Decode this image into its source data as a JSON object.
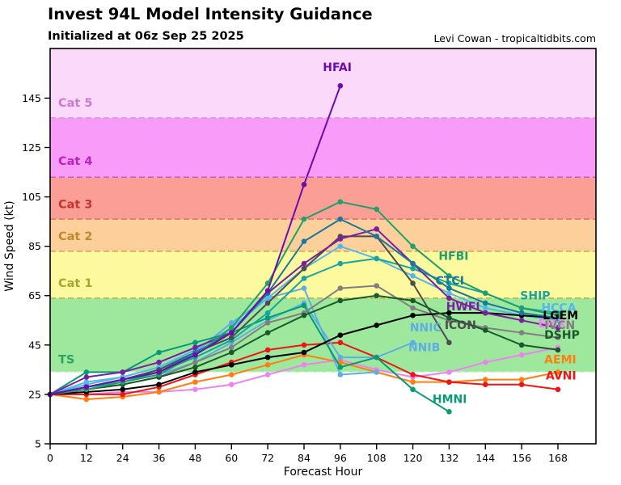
{
  "header": {
    "title": "Invest 94L Model Intensity Guidance",
    "subtitle": "Initialized at 06z Sep 25 2025",
    "credit": "Levi Cowan - tropicaltidbits.com"
  },
  "chart_data": {
    "type": "line",
    "title": "Invest 94L Model Intensity Guidance",
    "subtitle": "Initialized at 06z Sep 25 2025",
    "xlabel": "Forecast Hour",
    "ylabel": "Wind Speed (kt)",
    "xlim": [
      0,
      180.6
    ],
    "ylim": [
      5,
      165
    ],
    "x_ticks": [
      0,
      12,
      24,
      36,
      48,
      60,
      72,
      84,
      96,
      108,
      120,
      132,
      144,
      156,
      168
    ],
    "y_ticks": [
      5,
      25,
      45,
      65,
      85,
      105,
      125,
      145
    ],
    "x_step_hours": 12,
    "grid": false,
    "legend_position": "inline-labels",
    "bands": [
      {
        "name": "below-ts",
        "from": 5,
        "to": 34,
        "color": "#FFFFFF",
        "label": "",
        "label_color": "",
        "label_v": 0,
        "line_color": ""
      },
      {
        "name": "ts",
        "from": 34,
        "to": 64,
        "color": "#9EE89E",
        "label": "TS",
        "label_color": "#2FA360",
        "label_v": 37.5,
        "line_color": "#E2F5E2"
      },
      {
        "name": "cat1",
        "from": 64,
        "to": 83,
        "color": "#FDF99E",
        "label": "Cat 1",
        "label_color": "#A6A632",
        "label_v": 68.5,
        "line_color": "#B6B658"
      },
      {
        "name": "cat2",
        "from": 83,
        "to": 96,
        "color": "#FDD09B",
        "label": "Cat 2",
        "label_color": "#C1882B",
        "label_v": 87.5,
        "line_color": "#D3A74F"
      },
      {
        "name": "cat3",
        "from": 96,
        "to": 113,
        "color": "#FB9E96",
        "label": "Cat 3",
        "label_color": "#C5352C",
        "label_v": 100.5,
        "line_color": "#E0736A"
      },
      {
        "name": "cat4",
        "from": 113,
        "to": 137,
        "color": "#F99BF9",
        "label": "Cat 4",
        "label_color": "#BB22BB",
        "label_v": 118,
        "line_color": "#C95FC9"
      },
      {
        "name": "cat5",
        "from": 137,
        "to": 165,
        "color": "#FBD9FB",
        "label": "Cat 5",
        "label_color": "#C77DC7",
        "label_v": 141.5,
        "line_color": "#D79AD7"
      }
    ],
    "series": [
      {
        "name": "EMXI",
        "color": "#EE82EE",
        "values": [
          25,
          25,
          26,
          26,
          27,
          29,
          33,
          37,
          39,
          35,
          32,
          34,
          38,
          41,
          44
        ],
        "label": {
          "h": 161.5,
          "v": 52.2,
          "anchor": "start"
        }
      },
      {
        "name": "AEMI",
        "color": "#FF7F0E",
        "values": [
          25,
          23,
          24,
          26,
          30,
          33,
          37,
          41,
          38,
          34,
          30,
          30,
          31,
          31,
          34
        ],
        "label": {
          "h": 163.5,
          "v": 37.5,
          "anchor": "start"
        }
      },
      {
        "name": "AVNI",
        "color": "#F01515",
        "values": [
          25,
          25,
          25,
          28,
          33,
          38,
          43,
          45,
          46,
          40,
          33,
          30,
          29,
          29,
          27
        ],
        "label": {
          "h": 164,
          "v": 31,
          "anchor": "start"
        }
      },
      {
        "name": "NNIB",
        "color": "#5FAEE3",
        "values": [
          25,
          29,
          32,
          36,
          42,
          54,
          64,
          68,
          33,
          34
        ],
        "label": {
          "h": 118.5,
          "v": 42.5,
          "anchor": "start"
        }
      },
      {
        "name": "NNIC",
        "color": "#5FAEE3",
        "values": [
          25,
          28,
          30,
          33,
          38,
          46,
          55,
          62,
          40,
          40,
          46
        ],
        "label": {
          "h": 119,
          "v": 50.5,
          "anchor": "start"
        }
      },
      {
        "name": "HCCA",
        "color": "#53B8EC",
        "values": [
          25,
          30,
          32,
          36,
          43,
          52,
          64,
          76,
          85,
          80,
          73,
          66,
          60,
          57,
          55
        ],
        "label": {
          "h": 162.5,
          "v": 58.5,
          "anchor": "start"
        }
      },
      {
        "name": "HMNI",
        "color": "#089B76",
        "values": [
          25,
          34,
          34,
          42,
          46,
          50,
          56,
          61,
          36,
          40,
          27,
          18
        ],
        "label": {
          "h": 126.5,
          "v": 21.5,
          "anchor": "start"
        }
      },
      {
        "name": "SHIP",
        "color": "#16A5A0",
        "values": [
          25,
          28,
          30,
          34,
          40,
          47,
          58,
          72,
          78,
          80,
          76,
          70,
          66,
          60,
          58
        ],
        "label": {
          "h": 155.5,
          "v": 63.5,
          "anchor": "start"
        }
      },
      {
        "name": "IVCN",
        "color": "#808080",
        "values": [
          25,
          27,
          29,
          32,
          38,
          44,
          54,
          58,
          68,
          69,
          60,
          55,
          52,
          50,
          48
        ],
        "label": {
          "h": 163.5,
          "v": 51.5,
          "anchor": "start"
        }
      },
      {
        "name": "ICON",
        "color": "#4D4D4D",
        "values": [
          25,
          28,
          31,
          35,
          42,
          48,
          62,
          76,
          89,
          89,
          70,
          46
        ],
        "label": {
          "h": 130.5,
          "v": 51.5,
          "anchor": "start"
        }
      },
      {
        "name": "LGEM",
        "color": "#000000",
        "values": [
          25,
          26,
          27,
          29,
          34,
          37,
          40,
          42,
          49,
          53,
          57,
          58,
          58,
          57,
          56
        ],
        "label": {
          "h": 163,
          "v": 55.5,
          "anchor": "start"
        }
      },
      {
        "name": "DSHP",
        "color": "#1A5A2A",
        "values": [
          25,
          27,
          29,
          32,
          36,
          42,
          50,
          57,
          63,
          65,
          63,
          56,
          51,
          45,
          43
        ],
        "label": {
          "h": 163.5,
          "v": 47.5,
          "anchor": "start"
        }
      },
      {
        "name": "HWFI",
        "color": "#7B1FA2",
        "values": [
          25,
          32,
          34,
          38,
          44,
          50,
          66,
          78,
          88,
          92,
          78,
          64,
          58,
          55,
          52
        ],
        "label": {
          "h": 131,
          "v": 59,
          "anchor": "start"
        }
      },
      {
        "name": "CTCI",
        "color": "#1878A0",
        "values": [
          25,
          28,
          31,
          34,
          42,
          50,
          66,
          87,
          96,
          89,
          78,
          68,
          62,
          58,
          56
        ],
        "label": {
          "h": 127.5,
          "v": 69.5,
          "anchor": "start"
        }
      },
      {
        "name": "HFBI",
        "color": "#20A06A",
        "values": [
          25,
          27,
          30,
          33,
          41,
          52,
          70,
          96,
          103,
          100,
          85,
          73,
          66,
          60,
          57
        ],
        "label": {
          "h": 128.5,
          "v": 79.5,
          "anchor": "start"
        }
      },
      {
        "name": "HFAI",
        "color": "#6A0DAD",
        "values": [
          25,
          28,
          31,
          34,
          41,
          50,
          67,
          110,
          150
        ],
        "label": {
          "h": 95,
          "v": 156,
          "anchor": "middle"
        }
      }
    ]
  }
}
